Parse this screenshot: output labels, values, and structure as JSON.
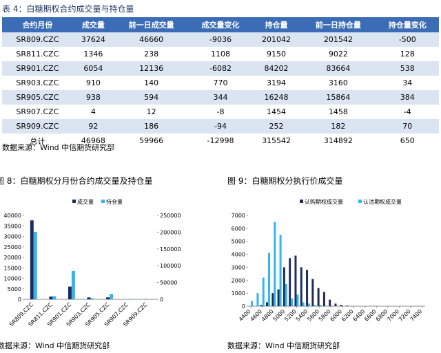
{
  "table": {
    "title": "表 4：白糖期权合约成交量与持仓量",
    "header": [
      "合约月份",
      "成交量",
      "前一日成交量",
      "成交量变化",
      "持仓量",
      "前一日持仓量",
      "持仓量变化"
    ],
    "rows": [
      [
        "SR809.CZC",
        37624,
        46660,
        -9036,
        201042,
        201542,
        -500
      ],
      [
        "SR811.CZC",
        1346,
        238,
        1108,
        9150,
        9022,
        128
      ],
      [
        "SR901.CZC",
        6054,
        12136,
        -6082,
        84202,
        83664,
        538
      ],
      [
        "SR903.CZC",
        910,
        140,
        770,
        3194,
        3160,
        34
      ],
      [
        "SR905.CZC",
        938,
        594,
        344,
        16248,
        15864,
        384
      ],
      [
        "SR907.CZC",
        4,
        12,
        -8,
        1454,
        1458,
        -4
      ],
      [
        "SR909.CZC",
        92,
        186,
        -94,
        252,
        182,
        70
      ],
      [
        "总计",
        46968,
        59966,
        -12998,
        315542,
        314892,
        650
      ]
    ]
  },
  "source_notes": [
    "数据来源：Wind 中信期货研究部",
    "数据来源：Wind 中信期货研究部",
    "数据来源：Wind 中信期货研究部"
  ],
  "chart_data": [
    {
      "type": "bar",
      "title": "图 8：白糖期权分月份合约成交量及持仓量",
      "categories": [
        "SR809.CZC",
        "SR811.CZC",
        "SR901.CZC",
        "SR903.CZC",
        "SR905.CZC",
        "SR907.CZC",
        "SR909.CZC"
      ],
      "series": [
        {
          "name": "成交量",
          "color": "#1f2d5c",
          "values": [
            37624,
            1346,
            6054,
            910,
            938,
            4,
            92
          ]
        },
        {
          "name": "持仓量",
          "color": "#33b5f0",
          "axis": "y2",
          "values": [
            201042,
            9150,
            84202,
            3194,
            16248,
            1454,
            252
          ]
        }
      ],
      "ylim": [
        0,
        40000
      ],
      "yticks": [
        0,
        5000,
        10000,
        15000,
        20000,
        25000,
        30000,
        35000,
        40000
      ],
      "y2lim": [
        0,
        250000
      ],
      "y2ticks": [
        0,
        50000,
        100000,
        150000,
        200000,
        250000
      ]
    },
    {
      "type": "bar",
      "title": "图 9：白糖期权分执行价成交量",
      "x": [
        4400,
        4500,
        4600,
        4700,
        4800,
        4900,
        5000,
        5100,
        5200,
        5300,
        5400,
        5500,
        5600,
        5700,
        5800,
        5900,
        6000,
        6100,
        6200,
        6300,
        6400,
        6500,
        6600,
        6700,
        6800,
        6900,
        7000,
        7100,
        7200,
        7300,
        7400
      ],
      "series": [
        {
          "name": "认购期权成交量",
          "color": "#1f2d5c",
          "values": [
            0,
            0,
            100,
            300,
            1000,
            1300,
            3000,
            3700,
            3900,
            3000,
            2800,
            2100,
            1400,
            1100,
            500,
            200,
            100,
            50,
            0,
            0,
            0,
            0,
            0,
            0,
            0,
            0,
            0,
            0,
            0,
            0,
            0
          ]
        },
        {
          "name": "认沽期权成交量",
          "color": "#33b5f0",
          "values": [
            400,
            1000,
            2200,
            4100,
            6500,
            5500,
            1700,
            600,
            900,
            300,
            200,
            100,
            100,
            0,
            0,
            0,
            0,
            0,
            0,
            0,
            0,
            0,
            0,
            0,
            0,
            0,
            0,
            0,
            0,
            0,
            0
          ]
        }
      ],
      "xlim": [
        4350,
        7450
      ],
      "xticks": [
        4400,
        4600,
        4800,
        5000,
        5200,
        5400,
        5600,
        5800,
        6000,
        6200,
        6400,
        6600,
        6800,
        7000,
        7200,
        7400
      ],
      "ylim": [
        0,
        7000
      ],
      "yticks": [
        0,
        1000,
        2000,
        3000,
        4000,
        5000,
        6000,
        7000
      ]
    }
  ]
}
